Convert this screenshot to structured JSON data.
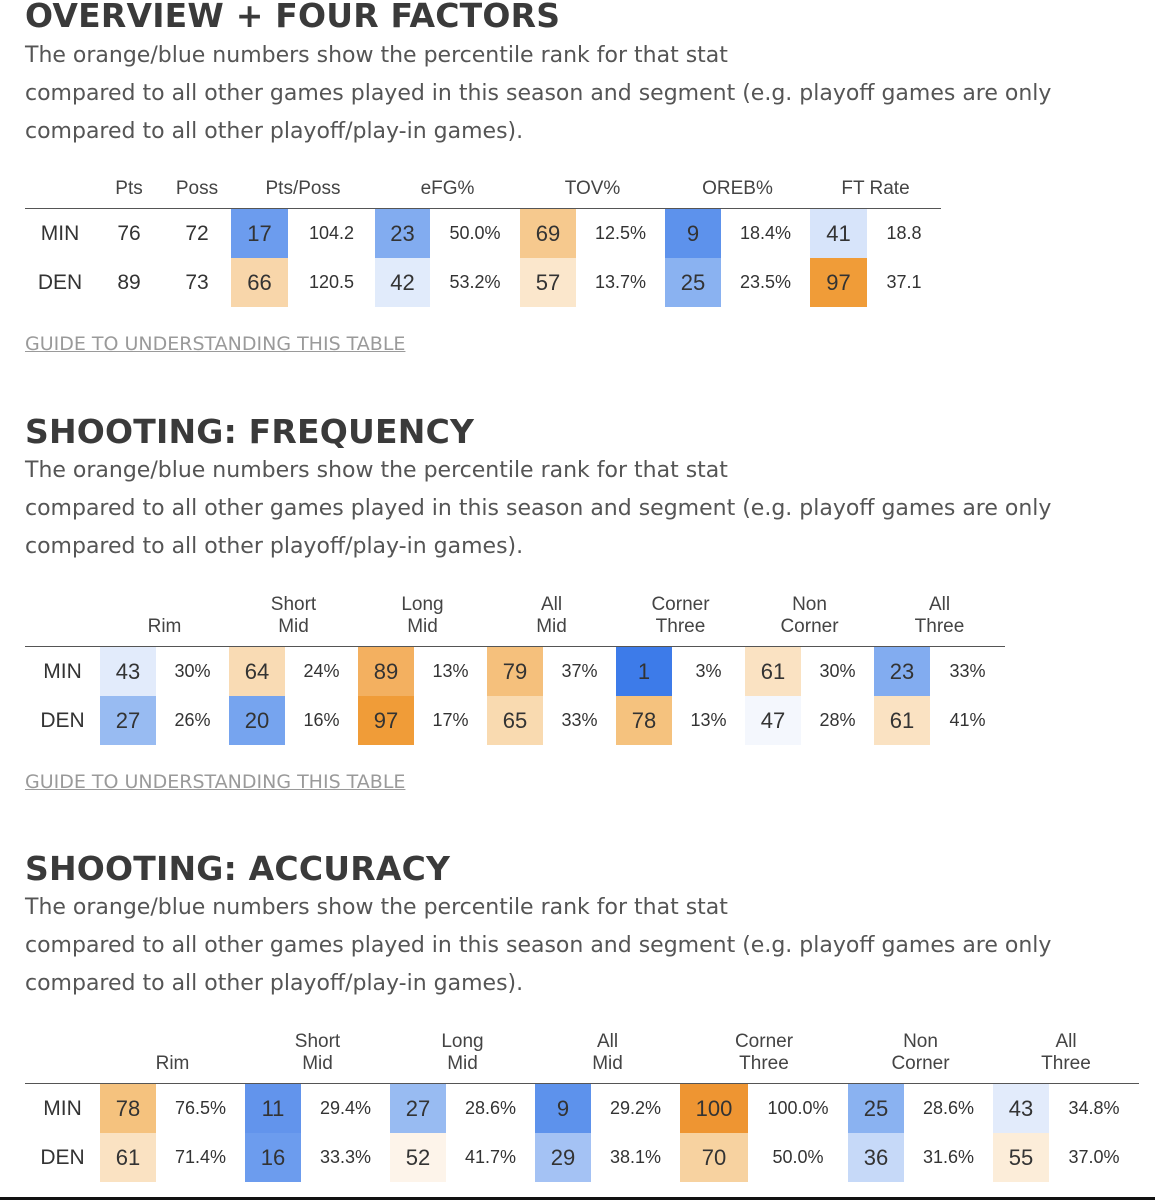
{
  "description_lines": [
    "The orange/blue numbers show the percentile rank for that stat",
    "compared to all other games played in this season and segment (e.g. playoff games are only",
    "compared to all other playoff/play-in games)."
  ],
  "guide_label": "GUIDE TO UNDERSTANDING THIS TABLE",
  "overview": {
    "title": "OVERVIEW + FOUR FACTORS",
    "headers": [
      "Pts",
      "Poss",
      "Pts/Poss",
      "eFG%",
      "TOV%",
      "OREB%",
      "FT Rate"
    ],
    "rows": [
      {
        "team": "MIN",
        "pts": "76",
        "poss": "72",
        "stats": [
          {
            "pct": "17",
            "val": "104.2",
            "color": "#6c9cee"
          },
          {
            "pct": "23",
            "val": "50.0%",
            "color": "#82acf0"
          },
          {
            "pct": "69",
            "val": "12.5%",
            "color": "#f6c98e"
          },
          {
            "pct": "9",
            "val": "18.4%",
            "color": "#5d92ec"
          },
          {
            "pct": "41",
            "val": "18.8",
            "color": "#d7e4fa"
          }
        ]
      },
      {
        "team": "DEN",
        "pts": "89",
        "poss": "73",
        "stats": [
          {
            "pct": "66",
            "val": "120.5",
            "color": "#f8d6aa"
          },
          {
            "pct": "42",
            "val": "53.2%",
            "color": "#e1ebfb"
          },
          {
            "pct": "57",
            "val": "13.7%",
            "color": "#fbe7cc"
          },
          {
            "pct": "25",
            "val": "23.5%",
            "color": "#8ab2f1"
          },
          {
            "pct": "97",
            "val": "37.1",
            "color": "#f09c38"
          }
        ]
      }
    ]
  },
  "frequency": {
    "title": "SHOOTING: FREQUENCY",
    "headers": [
      [
        "Rim"
      ],
      [
        "Short",
        "Mid"
      ],
      [
        "Long",
        "Mid"
      ],
      [
        "All",
        "Mid"
      ],
      [
        "Corner",
        "Three"
      ],
      [
        "Non",
        "Corner"
      ],
      [
        "All",
        "Three"
      ]
    ],
    "rows": [
      {
        "team": "MIN",
        "stats": [
          {
            "pct": "43",
            "val": "30%",
            "color": "#e2ebfb"
          },
          {
            "pct": "64",
            "val": "24%",
            "color": "#f9dbb4"
          },
          {
            "pct": "89",
            "val": "13%",
            "color": "#f3b060"
          },
          {
            "pct": "79",
            "val": "37%",
            "color": "#f5c07c"
          },
          {
            "pct": "1",
            "val": "3%",
            "color": "#3d7be9"
          },
          {
            "pct": "61",
            "val": "30%",
            "color": "#fae2c2"
          },
          {
            "pct": "23",
            "val": "33%",
            "color": "#82acf0"
          }
        ]
      },
      {
        "team": "DEN",
        "stats": [
          {
            "pct": "27",
            "val": "26%",
            "color": "#98bbf2"
          },
          {
            "pct": "20",
            "val": "16%",
            "color": "#76a4ef"
          },
          {
            "pct": "97",
            "val": "17%",
            "color": "#f09c38"
          },
          {
            "pct": "65",
            "val": "33%",
            "color": "#f9dab0"
          },
          {
            "pct": "78",
            "val": "13%",
            "color": "#f5c27e"
          },
          {
            "pct": "47",
            "val": "28%",
            "color": "#f4f7fd"
          },
          {
            "pct": "61",
            "val": "41%",
            "color": "#fae2c2"
          }
        ]
      }
    ]
  },
  "accuracy": {
    "title": "SHOOTING: ACCURACY",
    "headers": [
      [
        "Rim"
      ],
      [
        "Short",
        "Mid"
      ],
      [
        "Long",
        "Mid"
      ],
      [
        "All",
        "Mid"
      ],
      [
        "Corner",
        "Three"
      ],
      [
        "Non",
        "Corner"
      ],
      [
        "All",
        "Three"
      ]
    ],
    "rows": [
      {
        "team": "MIN",
        "stats": [
          {
            "pct": "78",
            "val": "76.5%",
            "color": "#f5c27e"
          },
          {
            "pct": "11",
            "val": "29.4%",
            "color": "#6294ec"
          },
          {
            "pct": "27",
            "val": "28.6%",
            "color": "#98bbf2"
          },
          {
            "pct": "9",
            "val": "29.2%",
            "color": "#5d92ec"
          },
          {
            "pct": "100",
            "val": "100.0%",
            "color": "#ee9532"
          },
          {
            "pct": "25",
            "val": "28.6%",
            "color": "#8ab2f1"
          },
          {
            "pct": "43",
            "val": "34.8%",
            "color": "#e2ebfb"
          }
        ]
      },
      {
        "team": "DEN",
        "stats": [
          {
            "pct": "61",
            "val": "71.4%",
            "color": "#fae2c2"
          },
          {
            "pct": "16",
            "val": "33.3%",
            "color": "#6c9cee"
          },
          {
            "pct": "52",
            "val": "41.7%",
            "color": "#fdf4ea"
          },
          {
            "pct": "29",
            "val": "38.1%",
            "color": "#a4c2f4"
          },
          {
            "pct": "70",
            "val": "50.0%",
            "color": "#f7d2a0"
          },
          {
            "pct": "36",
            "val": "31.6%",
            "color": "#c6d9f8"
          },
          {
            "pct": "55",
            "val": "37.0%",
            "color": "#fcedd9"
          }
        ]
      }
    ]
  }
}
